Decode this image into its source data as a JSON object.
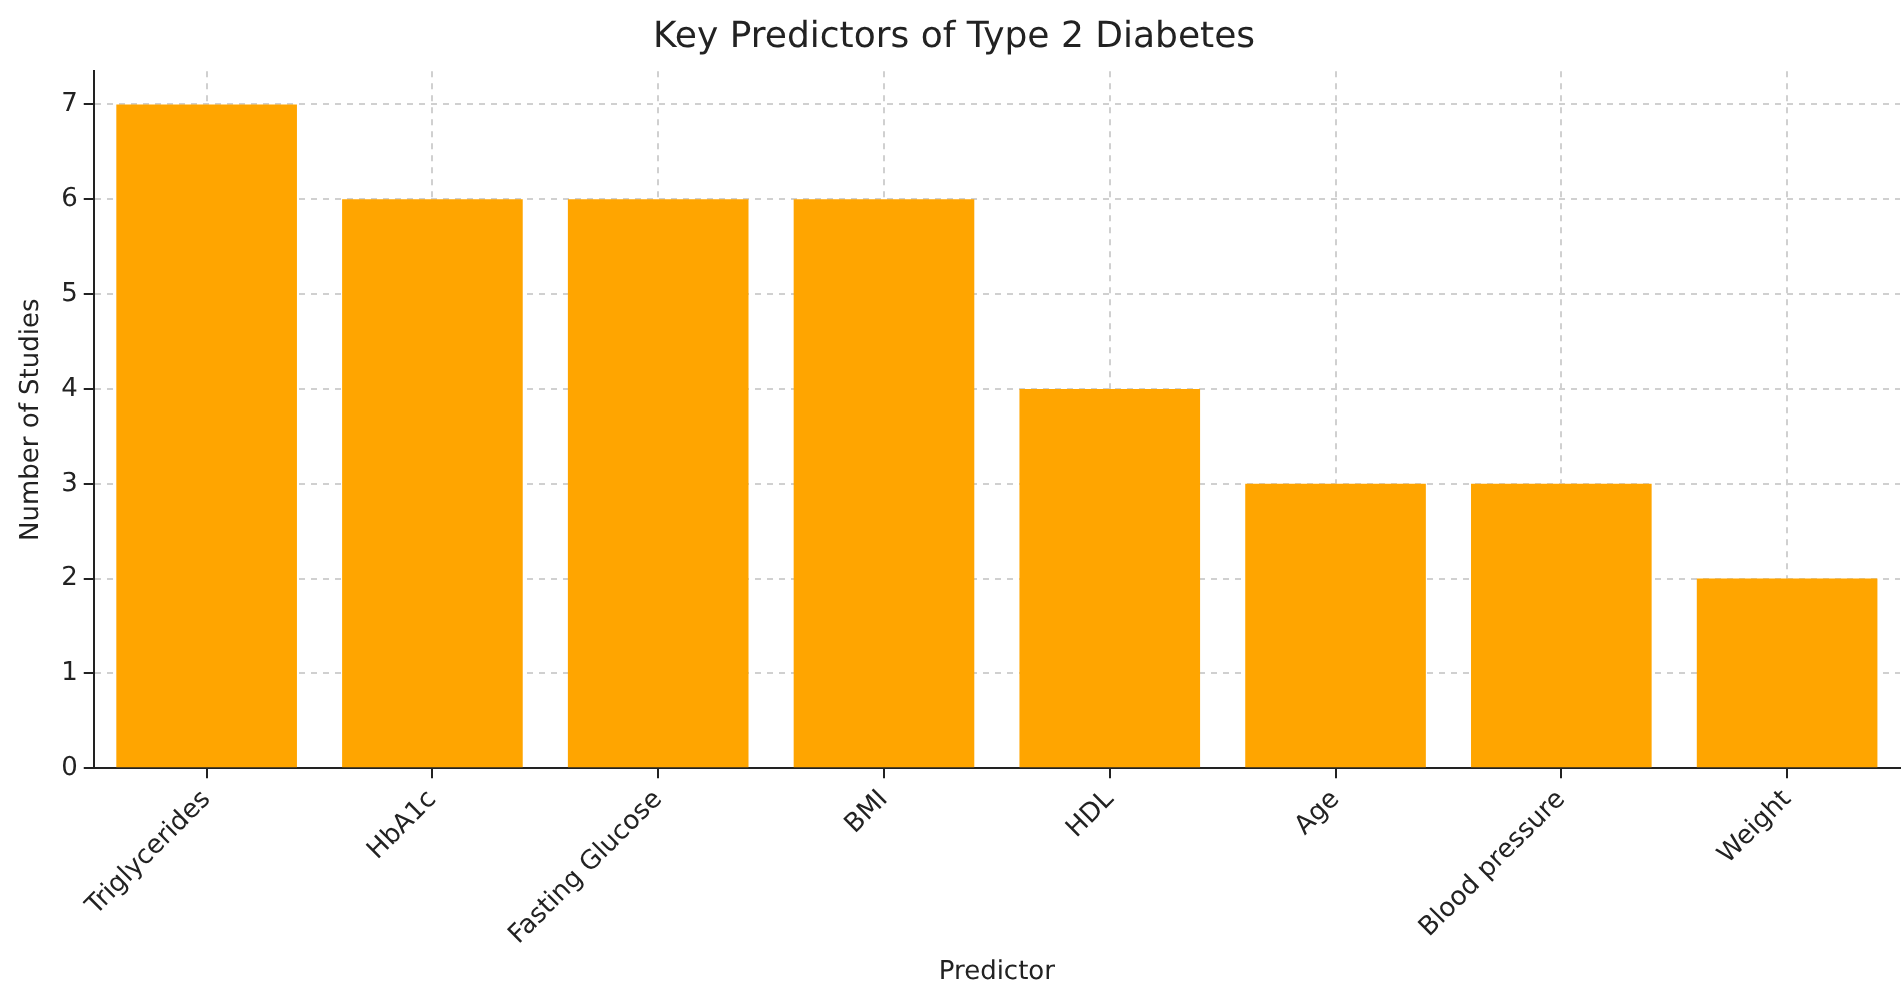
{
  "chart_data": {
    "type": "bar",
    "title": "Key Predictors of Type 2 Diabetes",
    "xlabel": "Predictor",
    "ylabel": "Number of Studies",
    "categories": [
      "Triglycerides",
      "HbA1c",
      "Fasting Glucose",
      "BMI",
      "HDL",
      "Age",
      "Blood pressure",
      "Weight"
    ],
    "values": [
      7,
      6,
      6,
      6,
      4,
      3,
      3,
      2
    ],
    "color": "#ffa500",
    "ylim": [
      0,
      7.35
    ],
    "yticks": [
      0,
      1,
      2,
      3,
      4,
      5,
      6,
      7
    ],
    "grid": true
  }
}
